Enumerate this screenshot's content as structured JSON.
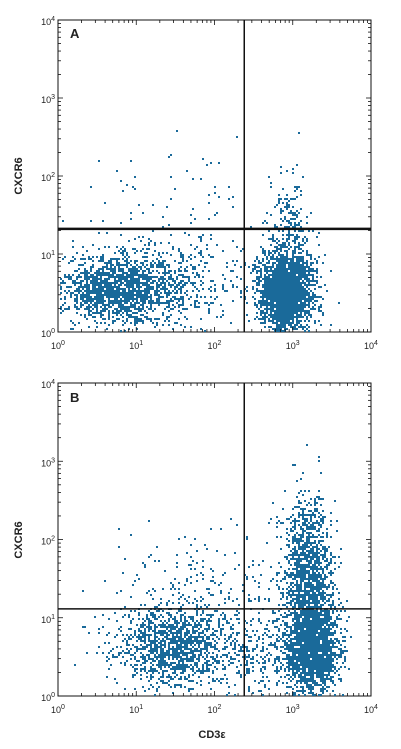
{
  "chart_data": [
    {
      "type": "scatter",
      "panel_label": "A",
      "xlabel": "",
      "ylabel": "CXCR6",
      "xscale": "log",
      "yscale": "log",
      "xlim": [
        1,
        10000
      ],
      "ylim": [
        1,
        10000
      ],
      "x_tick_labels": [
        [
          "10",
          "0"
        ],
        [
          "10",
          "1"
        ],
        [
          "10",
          "2"
        ],
        [
          "10",
          "3"
        ],
        [
          "10",
          "4"
        ]
      ],
      "y_tick_labels": [
        [
          "10",
          "0"
        ],
        [
          "10",
          "1"
        ],
        [
          "10",
          "2"
        ],
        [
          "10",
          "3"
        ],
        [
          "10",
          "4"
        ]
      ],
      "quadrant_x": 240,
      "quadrant_y": 21,
      "point_color": "#1a6a9a",
      "populations": [
        {
          "center": [
            8,
            4
          ],
          "spread": [
            0.42,
            0.22
          ],
          "count": 1300
        },
        {
          "center": [
            4,
            3
          ],
          "spread": [
            0.3,
            0.2
          ],
          "count": 500
        },
        {
          "center": [
            800,
            3.5
          ],
          "spread": [
            0.17,
            0.24
          ],
          "count": 2600
        },
        {
          "center": [
            900,
            25
          ],
          "spread": [
            0.14,
            0.32
          ],
          "count": 200
        },
        {
          "center": [
            30,
            5
          ],
          "spread": [
            0.6,
            0.3
          ],
          "count": 250
        },
        {
          "center": [
            20,
            60
          ],
          "spread": [
            0.55,
            0.35
          ],
          "count": 60
        }
      ]
    },
    {
      "type": "scatter",
      "panel_label": "B",
      "xlabel": "CD3ε",
      "ylabel": "CXCR6",
      "xscale": "log",
      "yscale": "log",
      "xlim": [
        1,
        10000
      ],
      "ylim": [
        1,
        10000
      ],
      "x_tick_labels": [
        [
          "10",
          "0"
        ],
        [
          "10",
          "1"
        ],
        [
          "10",
          "2"
        ],
        [
          "10",
          "3"
        ],
        [
          "10",
          "4"
        ]
      ],
      "y_tick_labels": [
        [
          "10",
          "0"
        ],
        [
          "10",
          "1"
        ],
        [
          "10",
          "2"
        ],
        [
          "10",
          "3"
        ],
        [
          "10",
          "4"
        ]
      ],
      "quadrant_x": 240,
      "quadrant_y": 13,
      "point_color": "#1a6a9a",
      "populations": [
        {
          "center": [
            30,
            4.5
          ],
          "spread": [
            0.38,
            0.26
          ],
          "count": 1300
        },
        {
          "center": [
            1700,
            4.5
          ],
          "spread": [
            0.16,
            0.3
          ],
          "count": 2200
        },
        {
          "center": [
            1500,
            50
          ],
          "spread": [
            0.16,
            0.4
          ],
          "count": 1100
        },
        {
          "center": [
            60,
            25
          ],
          "spread": [
            0.55,
            0.35
          ],
          "count": 200
        },
        {
          "center": [
            400,
            4
          ],
          "spread": [
            0.35,
            0.3
          ],
          "count": 300
        }
      ]
    }
  ]
}
